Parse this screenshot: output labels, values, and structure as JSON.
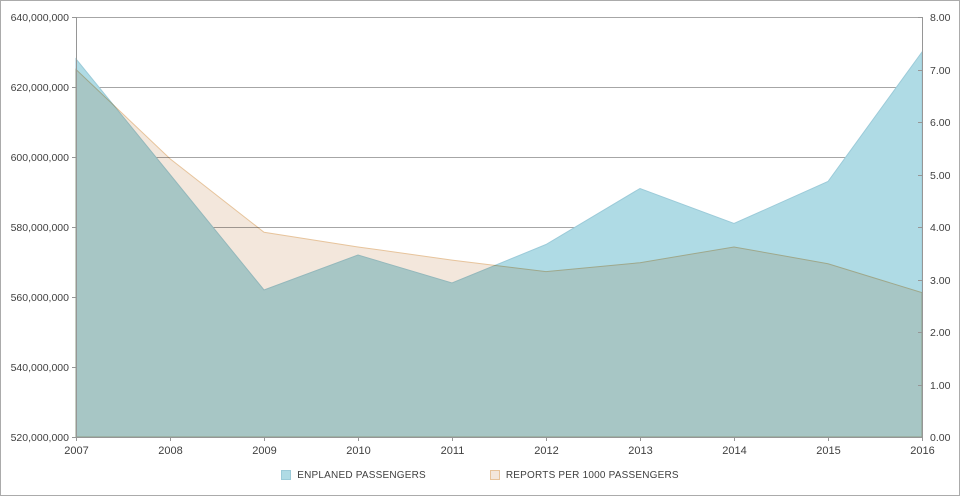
{
  "chart_data": {
    "type": "area",
    "title": "",
    "x": [
      2007,
      2008,
      2009,
      2010,
      2011,
      2012,
      2013,
      2014,
      2015,
      2016
    ],
    "x_tick_labels": [
      "2007",
      "2008",
      "2009",
      "2010",
      "2011",
      "2012",
      "2013",
      "2014",
      "2015",
      "2016"
    ],
    "series": [
      {
        "name": "ENPLANED PASSENGERS",
        "axis": "left",
        "color": "#AFDBE5",
        "edge_color": "#9CCBD9",
        "values": [
          628000000,
          595000000,
          562000000,
          572000000,
          564000000,
          575000000,
          591000000,
          581000000,
          593000000,
          630000000
        ]
      },
      {
        "name": "REPORTS PER 1000 PASSENGERS",
        "axis": "right",
        "color": "#F3E7DC",
        "edge_color": "#E7C49C",
        "values": [
          7.0,
          5.3,
          3.9,
          3.62,
          3.37,
          3.15,
          3.32,
          3.62,
          3.3,
          2.75
        ]
      }
    ],
    "left_axis": {
      "min": 520000000,
      "max": 640000000,
      "step": 20000000,
      "tick_labels": [
        "520,000,000",
        "540,000,000",
        "560,000,000",
        "580,000,000",
        "600,000,000",
        "620,000,000",
        "640,000,000"
      ]
    },
    "right_axis": {
      "min": 0,
      "max": 8,
      "step": 1,
      "tick_labels": [
        "0.00",
        "1.00",
        "2.00",
        "3.00",
        "4.00",
        "5.00",
        "6.00",
        "7.00",
        "8.00"
      ]
    },
    "grid": true,
    "legend_position": "bottom",
    "colors": {
      "gridline": "#A6A6A6",
      "axis": "#969696",
      "tick": "#969696",
      "label_text": "#404040"
    }
  }
}
